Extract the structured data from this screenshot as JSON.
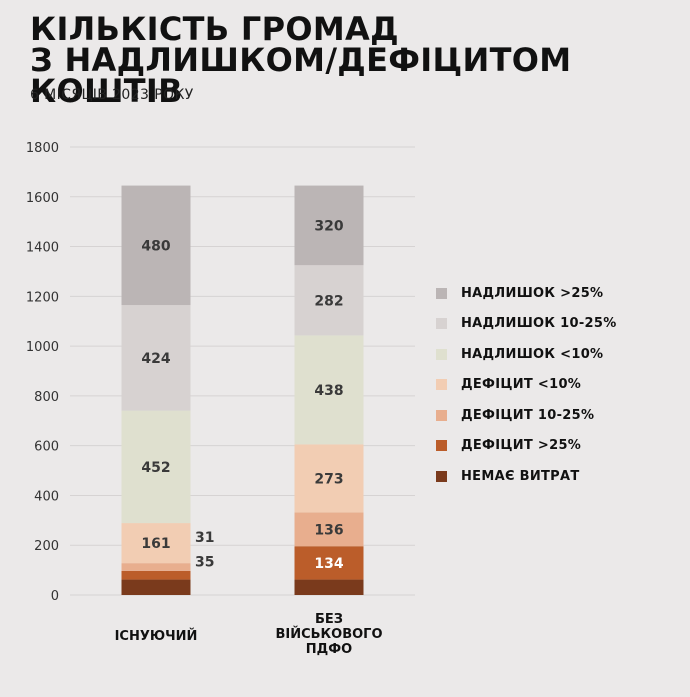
{
  "header": {
    "title_line1": "КІЛЬКІСТЬ ГРОМАД",
    "title_line2": "З НАДЛИШКОМ/ДЕФІЦИТОМ КОШТІВ",
    "subtitle": "6 МІСЯЦІВ 2023 РОКУ"
  },
  "chart_data": {
    "type": "bar",
    "stacked": true,
    "categories": [
      [
        "ІСНУЮЧИЙ"
      ],
      [
        "БЕЗ",
        "ВІЙСЬКОВОГО",
        "ПДФО"
      ]
    ],
    "ylim": [
      0,
      1800
    ],
    "yticks": [
      0,
      200,
      400,
      600,
      800,
      1000,
      1200,
      1400,
      1600,
      1800
    ],
    "grid": true,
    "legend_position": "right",
    "series": [
      {
        "name": "НЕМАЄ ВИТРАТ",
        "color": "#7a3a1c",
        "values": [
          62,
          62
        ],
        "labels": [
          "",
          ""
        ]
      },
      {
        "name": "ДЕФІЦИТ >25%",
        "color": "#bb5d2a",
        "values": [
          35,
          134
        ],
        "labels": [
          "35",
          "134"
        ]
      },
      {
        "name": "ДЕФІЦИТ 10-25%",
        "color": "#e8ae8e",
        "values": [
          31,
          136
        ],
        "labels": [
          "31",
          "136"
        ]
      },
      {
        "name": "ДЕФІЦИТ <10%",
        "color": "#f2cdb3",
        "values": [
          161,
          273
        ],
        "labels": [
          "161",
          "273"
        ]
      },
      {
        "name": "НАДЛИШОК <10%",
        "color": "#dfe0cf",
        "values": [
          452,
          438
        ],
        "labels": [
          "452",
          "438"
        ]
      },
      {
        "name": "НАДЛИШОК 10-25%",
        "color": "#d7d2d1",
        "values": [
          424,
          282
        ],
        "labels": [
          "424",
          "282"
        ]
      },
      {
        "name": "НАДЛИШОК >25%",
        "color": "#bbb5b5",
        "values": [
          480,
          320
        ],
        "labels": [
          "480",
          "320"
        ]
      }
    ]
  }
}
